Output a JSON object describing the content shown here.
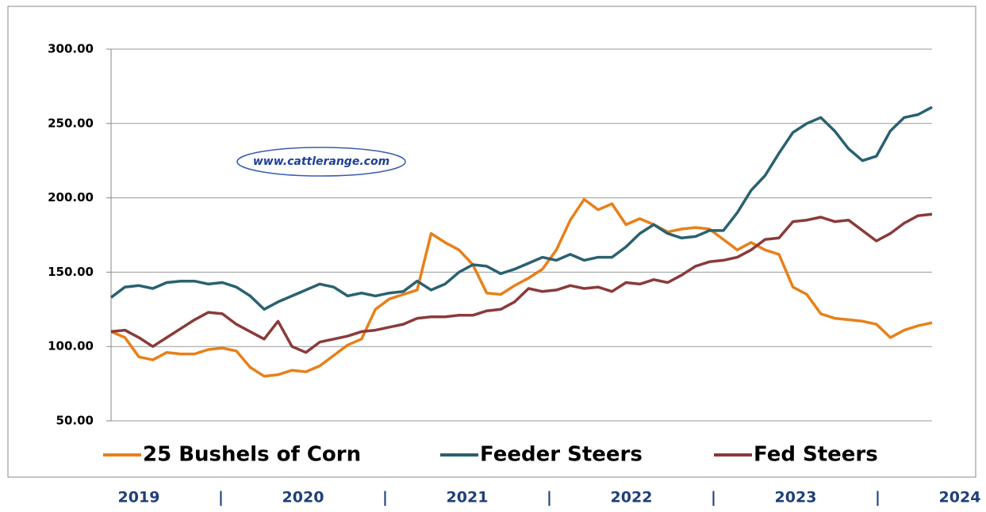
{
  "chart_data": {
    "type": "line",
    "watermark": "www.cattlerange.com",
    "x_labels": [
      "2019",
      "|",
      "2020",
      "|",
      "2021",
      "|",
      "2022",
      "|",
      "2023",
      "|",
      "2024"
    ],
    "ylim": [
      50,
      300
    ],
    "yticks": [
      {
        "value": 50,
        "label": "50.00"
      },
      {
        "value": 100,
        "label": "100.00"
      },
      {
        "value": 150,
        "label": "150.00"
      },
      {
        "value": 200,
        "label": "200.00"
      },
      {
        "value": 250,
        "label": "250.00"
      },
      {
        "value": 300,
        "label": "300.00"
      }
    ],
    "grid": true,
    "legend": "bottom",
    "series": [
      {
        "name": "25 Bushels of Corn",
        "color": "#e8801a",
        "values": [
          110,
          106,
          93,
          91,
          96,
          95,
          95,
          98,
          99,
          97,
          86,
          80,
          81,
          84,
          83,
          87,
          94,
          101,
          105,
          125,
          132,
          135,
          138,
          176,
          170,
          165,
          155,
          136,
          135,
          141,
          146,
          152,
          165,
          185,
          199,
          192,
          196,
          182,
          186,
          182,
          177,
          179,
          180,
          179,
          172,
          165,
          170,
          165,
          162,
          140,
          135,
          122,
          119,
          118,
          117,
          115,
          106,
          111,
          114,
          116
        ]
      },
      {
        "name": "Feeder Steers",
        "color": "#2a6170",
        "values": [
          133,
          140,
          141,
          139,
          143,
          144,
          144,
          142,
          143,
          140,
          134,
          125,
          130,
          134,
          138,
          142,
          140,
          134,
          136,
          134,
          136,
          137,
          144,
          138,
          142,
          150,
          155,
          154,
          149,
          152,
          156,
          160,
          158,
          162,
          158,
          160,
          160,
          167,
          176,
          182,
          176,
          173,
          174,
          178,
          178,
          190,
          205,
          215,
          230,
          244,
          250,
          254,
          245,
          233,
          225,
          228,
          245,
          254,
          256,
          261
        ]
      },
      {
        "name": "Fed Steers",
        "color": "#8b3a3a",
        "values": [
          110,
          111,
          106,
          100,
          106,
          112,
          118,
          123,
          122,
          115,
          110,
          105,
          117,
          100,
          96,
          103,
          105,
          107,
          110,
          111,
          113,
          115,
          119,
          120,
          120,
          121,
          121,
          124,
          125,
          130,
          139,
          137,
          138,
          141,
          139,
          140,
          137,
          143,
          142,
          145,
          143,
          148,
          154,
          157,
          158,
          160,
          165,
          172,
          173,
          184,
          185,
          187,
          184,
          185,
          178,
          171,
          176,
          183,
          188,
          189
        ]
      }
    ]
  }
}
